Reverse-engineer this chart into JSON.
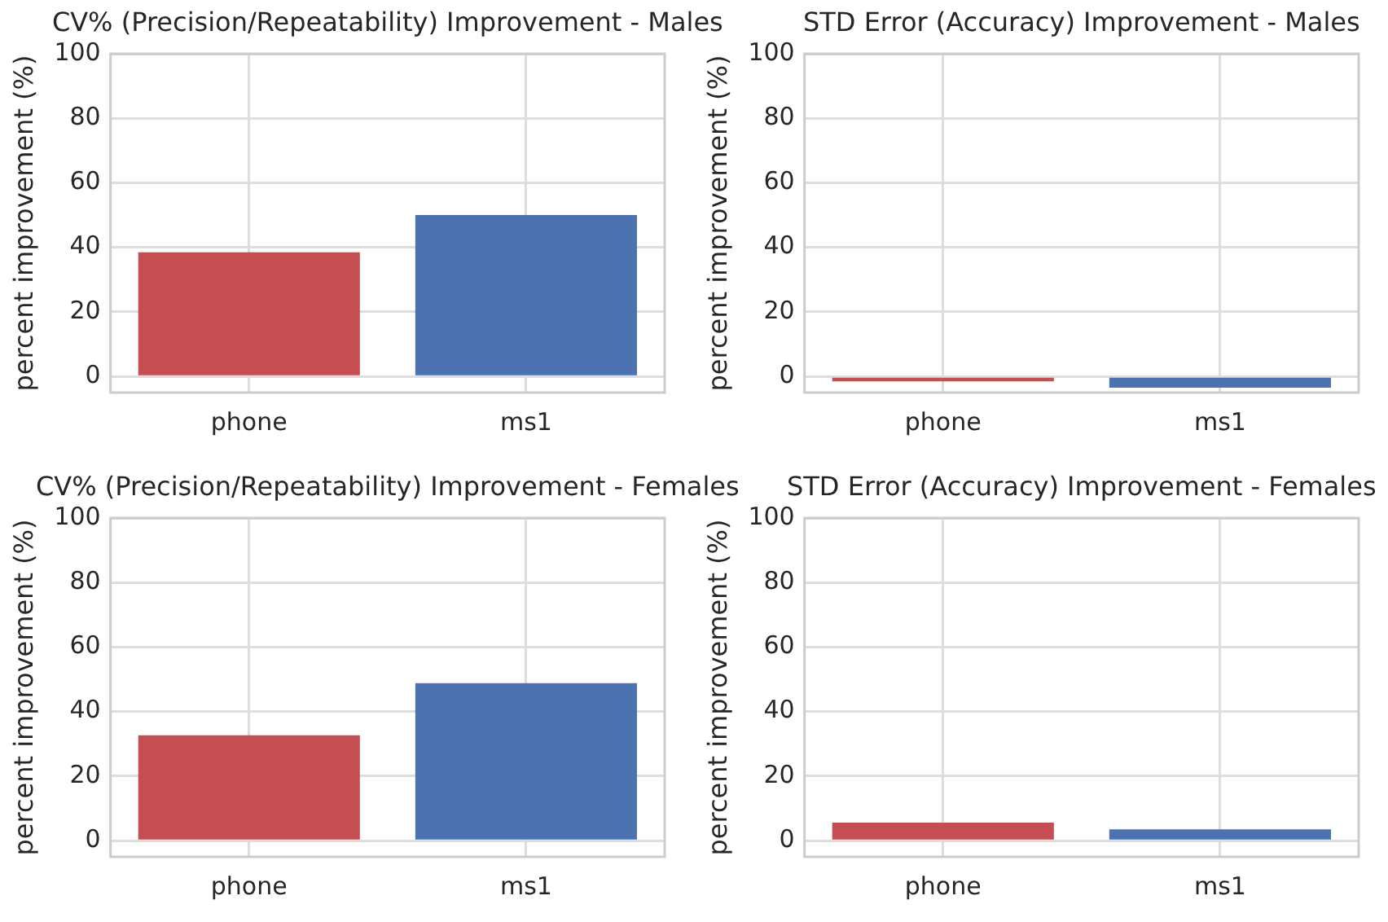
{
  "chart_data": [
    {
      "type": "bar",
      "title": "CV% (Precision/Repeatability) Improvement - Males",
      "ylabel": "percent improvement (%)",
      "categories": [
        "phone",
        "ms1"
      ],
      "values": [
        38.5,
        50
      ],
      "colors": [
        "#c44e52",
        "#4c72b0"
      ],
      "ylim": [
        -5,
        100
      ],
      "yticks": [
        0,
        20,
        40,
        60,
        80,
        100
      ],
      "grid": true
    },
    {
      "type": "bar",
      "title": "STD Error (Accuracy) Improvement - Males",
      "ylabel": "percent improvement (%)",
      "categories": [
        "phone",
        "ms1"
      ],
      "values": [
        -1.5,
        -3.5
      ],
      "colors": [
        "#c44e52",
        "#4c72b0"
      ],
      "ylim": [
        -5,
        100
      ],
      "yticks": [
        0,
        20,
        40,
        60,
        80,
        100
      ],
      "grid": true
    },
    {
      "type": "bar",
      "title": "CV% (Precision/Repeatability) Improvement - Females",
      "ylabel": "percent improvement (%)",
      "categories": [
        "phone",
        "ms1"
      ],
      "values": [
        32.7,
        48.8
      ],
      "colors": [
        "#c44e52",
        "#4c72b0"
      ],
      "ylim": [
        -5,
        100
      ],
      "yticks": [
        0,
        20,
        40,
        60,
        80,
        100
      ],
      "grid": true
    },
    {
      "type": "bar",
      "title": "STD Error (Accuracy) Improvement - Females",
      "ylabel": "percent improvement (%)",
      "categories": [
        "phone",
        "ms1"
      ],
      "values": [
        5.6,
        3.5
      ],
      "colors": [
        "#c44e52",
        "#4c72b0"
      ],
      "ylim": [
        -5,
        100
      ],
      "yticks": [
        0,
        20,
        40,
        60,
        80,
        100
      ],
      "grid": true
    }
  ]
}
